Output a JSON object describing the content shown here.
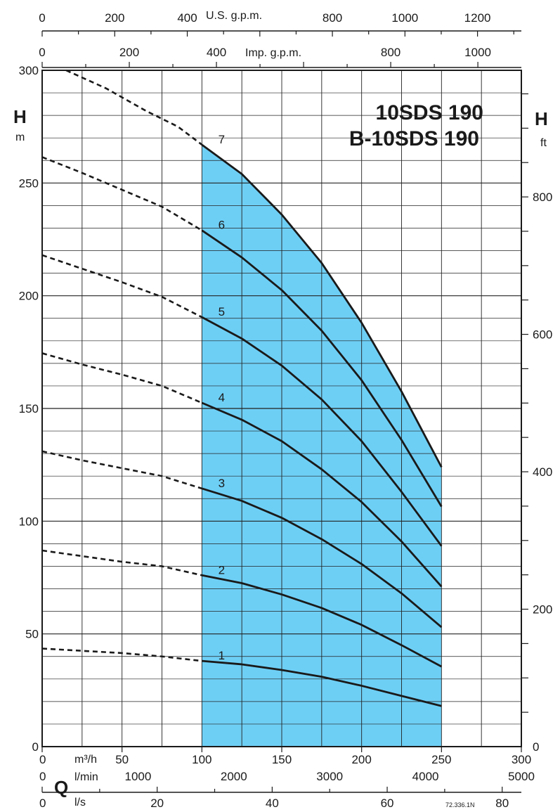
{
  "chart_data": {
    "type": "line",
    "title": "10SDS 190",
    "subtitle": "B-10SDS 190",
    "ylabel": "H",
    "ylabel_unit": "m",
    "y2label": "H",
    "y2label_unit": "ft",
    "xlabel": "Q",
    "xlim": [
      0,
      300
    ],
    "ylim": [
      0,
      300
    ],
    "grid": true,
    "operating_range": [
      100,
      250
    ],
    "y_ticks": [
      "0",
      "50",
      "100",
      "150",
      "200",
      "250",
      "300"
    ],
    "y2_ticks": [
      "0",
      "200",
      "400",
      "600",
      "800"
    ],
    "x_axes": {
      "m3h": {
        "unit": "m³/h",
        "ticks": [
          "0",
          "50",
          "100",
          "150",
          "200",
          "250",
          "300"
        ]
      },
      "lmin": {
        "unit": "l/min",
        "ticks": [
          "0",
          "1000",
          "2000",
          "3000",
          "4000",
          "5000"
        ]
      },
      "ls": {
        "unit": "l/s",
        "ticks": [
          "0",
          "20",
          "40",
          "60",
          "80"
        ]
      },
      "usgpm": {
        "unit": "U.S. g.p.m.",
        "ticks": [
          "0",
          "200",
          "400",
          "800",
          "1000",
          "1200"
        ]
      },
      "impgpm": {
        "unit": "Imp. g.p.m.",
        "ticks": [
          "0",
          "200",
          "400",
          "800",
          "1000"
        ]
      }
    },
    "series": [
      {
        "name": "1",
        "dashed_x": [
          0,
          25,
          50,
          75,
          100
        ],
        "dashed_y": [
          43.5,
          42.5,
          41.5,
          40,
          38
        ],
        "x": [
          100,
          125,
          150,
          175,
          200,
          225,
          250
        ],
        "y": [
          38,
          36.5,
          34,
          31,
          27,
          22.5,
          18
        ]
      },
      {
        "name": "2",
        "dashed_x": [
          0,
          25,
          50,
          75,
          100
        ],
        "dashed_y": [
          87,
          84.5,
          82,
          80,
          76
        ],
        "x": [
          100,
          125,
          150,
          175,
          200,
          225,
          250
        ],
        "y": [
          76,
          72.5,
          67.5,
          61.5,
          54,
          45,
          35.5
        ]
      },
      {
        "name": "3",
        "dashed_x": [
          0,
          25,
          50,
          75,
          100
        ],
        "dashed_y": [
          131,
          127,
          123.5,
          120,
          114.5
        ],
        "x": [
          100,
          125,
          150,
          175,
          200,
          225,
          250
        ],
        "y": [
          114.5,
          109,
          101.5,
          92,
          81,
          68,
          53
        ]
      },
      {
        "name": "4",
        "dashed_x": [
          0,
          25,
          50,
          75,
          100
        ],
        "dashed_y": [
          174.5,
          169.5,
          165,
          160,
          152.5
        ],
        "x": [
          100,
          125,
          150,
          175,
          200,
          225,
          250
        ],
        "y": [
          152.5,
          145,
          135.5,
          123,
          108.5,
          91,
          71
        ]
      },
      {
        "name": "5",
        "dashed_x": [
          0,
          25,
          50,
          75,
          100
        ],
        "dashed_y": [
          218,
          212,
          206,
          199.5,
          190.5
        ],
        "x": [
          100,
          125,
          150,
          175,
          200,
          225,
          250
        ],
        "y": [
          190.5,
          181,
          169,
          154,
          135.5,
          113,
          89
        ]
      },
      {
        "name": "6",
        "dashed_x": [
          0,
          25,
          50,
          75,
          100
        ],
        "dashed_y": [
          261.5,
          254.5,
          247,
          239.5,
          229
        ],
        "x": [
          100,
          125,
          150,
          175,
          200,
          225,
          250
        ],
        "y": [
          229,
          217,
          202.5,
          184.5,
          162.5,
          136,
          106.5
        ]
      },
      {
        "name": "7",
        "dashed_x": [
          15,
          40,
          65,
          85,
          100
        ],
        "dashed_y": [
          300,
          292,
          282,
          275,
          267
        ],
        "x": [
          100,
          125,
          150,
          175,
          200,
          225,
          250
        ],
        "y": [
          267,
          254,
          236,
          214.5,
          188,
          157.5,
          124
        ]
      }
    ],
    "reference_code": "72.336.1N"
  }
}
